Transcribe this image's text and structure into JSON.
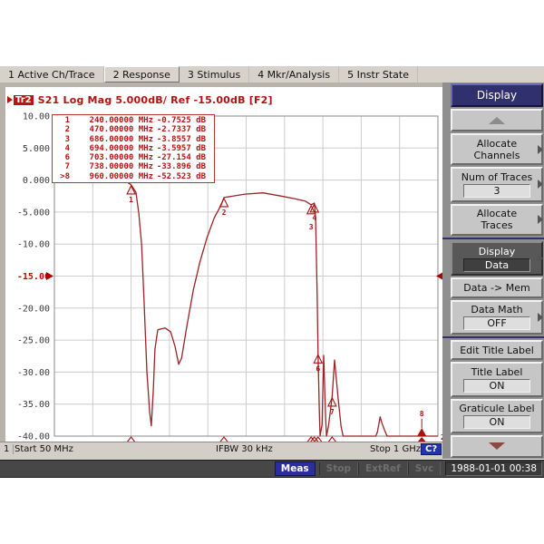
{
  "menu_bar": {
    "items": [
      "1 Active Ch/Trace",
      "2 Response",
      "3 Stimulus",
      "4 Mkr/Analysis",
      "5 Instr State"
    ],
    "selected": "2 Response"
  },
  "trace_header": {
    "trace_id": "Tr2",
    "text": "S21 Log Mag 5.000dB/ Ref -15.00dB [F2]"
  },
  "marker_table": {
    "rows": [
      {
        "n": "1",
        "freq": "240.00000 MHz",
        "val": "-0.7525 dB"
      },
      {
        "n": "2",
        "freq": "470.00000 MHz",
        "val": "-2.7337 dB"
      },
      {
        "n": "3",
        "freq": "686.00000 MHz",
        "val": "-3.8557 dB"
      },
      {
        "n": "4",
        "freq": "694.00000 MHz",
        "val": "-3.5957 dB"
      },
      {
        "n": "6",
        "freq": "703.00000 MHz",
        "val": "-27.154 dB"
      },
      {
        "n": "7",
        "freq": "738.00000 MHz",
        "val": "-33.896 dB"
      },
      {
        "n": ">8",
        "freq": "960.00000 MHz",
        "val": "-52.523 dB"
      }
    ]
  },
  "chart_data": {
    "type": "line",
    "title": "S21 Log Mag 5.000dB/ Ref -15.00dB",
    "xlabel": "Frequency 50 MHz - 1 GHz",
    "ylabel": "dB",
    "ylim": [
      -40,
      10
    ],
    "x_start_mhz": 50,
    "x_stop_mhz": 1000,
    "yticks": [
      "10.00",
      "5.000",
      "0.000",
      "-5.000",
      "-10.00",
      "-15.00",
      "-20.00",
      "-25.00",
      "-30.00",
      "-35.00",
      "-40.00"
    ],
    "ref_index": 5,
    "ref_level_label": "-15.00",
    "trace_end_label": "2",
    "grid": true,
    "series": [
      {
        "name": "Tr2 S21",
        "points_mhz_db": [
          [
            50,
            -0.1
          ],
          [
            140,
            -0.2
          ],
          [
            230,
            -0.3
          ],
          [
            240,
            -0.75
          ],
          [
            252,
            -1.9
          ],
          [
            259,
            -5.2
          ],
          [
            266,
            -10.1
          ],
          [
            272,
            -18.6
          ],
          [
            279,
            -29.9
          ],
          [
            286,
            -36.3
          ],
          [
            290,
            -38.4
          ],
          [
            295,
            -32.8
          ],
          [
            299,
            -26.4
          ],
          [
            306,
            -23.4
          ],
          [
            324,
            -23.1
          ],
          [
            338,
            -23.7
          ],
          [
            349,
            -26.0
          ],
          [
            358,
            -28.8
          ],
          [
            365,
            -27.8
          ],
          [
            378,
            -22.9
          ],
          [
            394,
            -17.2
          ],
          [
            410,
            -12.9
          ],
          [
            428,
            -9.0
          ],
          [
            446,
            -5.9
          ],
          [
            463,
            -3.9
          ],
          [
            470,
            -2.73
          ],
          [
            522,
            -2.2
          ],
          [
            567,
            -2.0
          ],
          [
            612,
            -2.5
          ],
          [
            645,
            -2.9
          ],
          [
            672,
            -3.3
          ],
          [
            686,
            -3.86
          ],
          [
            694,
            -3.6
          ],
          [
            697,
            -5.9
          ],
          [
            701,
            -18.6
          ],
          [
            703,
            -27.15
          ],
          [
            706,
            -35.6
          ],
          [
            708,
            -40
          ],
          [
            713,
            -38.2
          ],
          [
            717,
            -27.4
          ],
          [
            722,
            -37.3
          ],
          [
            724,
            -40
          ],
          [
            729,
            -38.4
          ],
          [
            738,
            -33.9
          ],
          [
            744,
            -28.1
          ],
          [
            753,
            -34.2
          ],
          [
            760,
            -38.4
          ],
          [
            765,
            -40
          ],
          [
            846,
            -40
          ],
          [
            850,
            -39.4
          ],
          [
            857,
            -37.0
          ],
          [
            861,
            -37.9
          ],
          [
            868,
            -39.1
          ],
          [
            874,
            -40
          ],
          [
            1000,
            -40
          ]
        ]
      }
    ],
    "markers": [
      {
        "n": "1",
        "mhz": 240,
        "db": -0.7525
      },
      {
        "n": "2",
        "mhz": 470,
        "db": -2.7337
      },
      {
        "n": "4",
        "mhz": 694,
        "db": -3.5957
      },
      {
        "n": "3",
        "mhz": 686,
        "db": -3.8557,
        "dy": 8
      },
      {
        "n": "6",
        "mhz": 703,
        "db": -27.154
      },
      {
        "n": "7",
        "mhz": 738,
        "db": -33.896
      },
      {
        "n": "8",
        "mhz": 960,
        "db": -52.523,
        "active": true
      }
    ],
    "colors": {
      "trace": "#9b2226",
      "marker": "#aa1111",
      "grid": "#cccccc",
      "ref": "#cc0000"
    }
  },
  "stimulus_bar": {
    "channel": "1",
    "start": "Start 50 MHz",
    "ifbw": "IFBW 30 kHz",
    "stop": "Stop 1 GHz",
    "badge": "C?"
  },
  "softkeys": {
    "title": "Display",
    "buttons": [
      {
        "line1": "Allocate",
        "line2": "Channels"
      },
      {
        "line1": "Num of Traces",
        "value": "3"
      },
      {
        "line1": "Allocate",
        "line2": "Traces"
      },
      {
        "line1": "Display",
        "value": "Data"
      },
      {
        "line1": "Data -> Mem"
      },
      {
        "line1": "Data Math",
        "value": "OFF"
      },
      {
        "line1": "Edit Title Label"
      },
      {
        "line1": "Title Label",
        "value": "ON"
      },
      {
        "line1": "Graticule Label",
        "value": "ON"
      }
    ]
  },
  "status_bar": {
    "meas": "Meas",
    "stop": "Stop",
    "extref": "ExtRef",
    "svc": "Svc",
    "datetime": "1988-01-01 00:38"
  }
}
